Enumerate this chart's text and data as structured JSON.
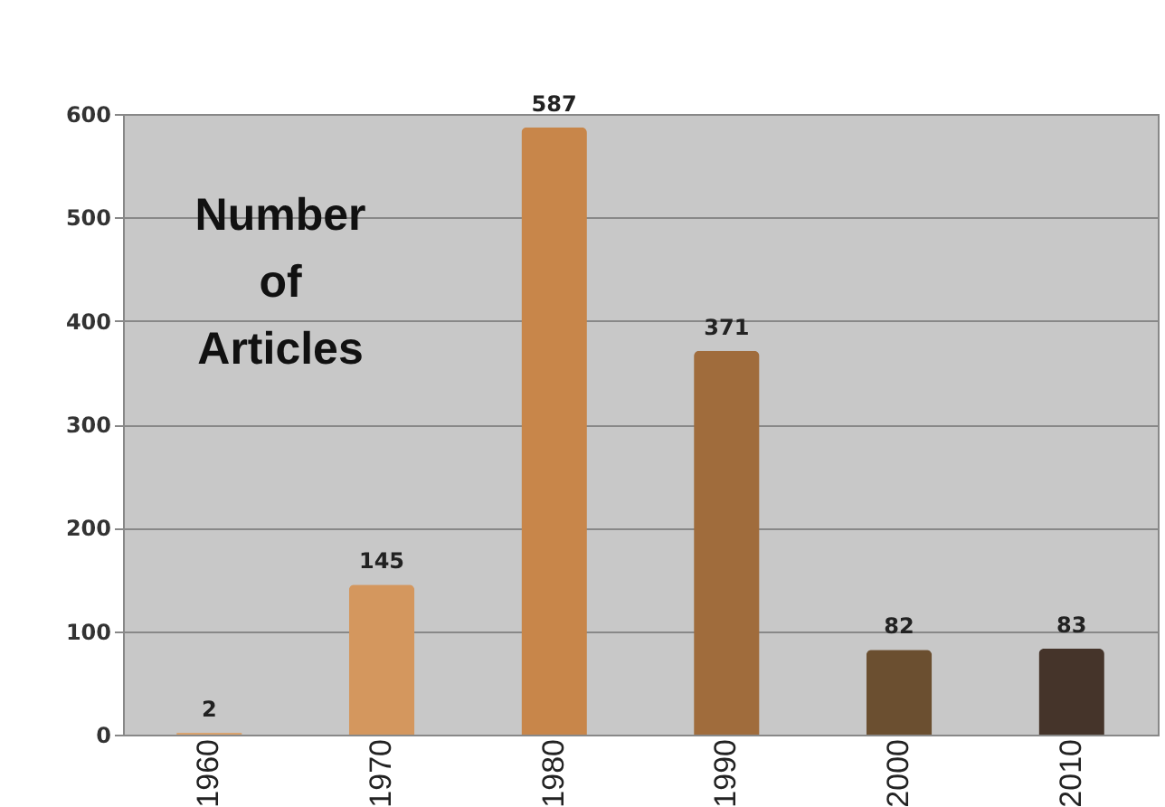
{
  "chart_data": {
    "type": "bar",
    "ylabel": "Number of Articles",
    "categories": [
      "1960",
      "1970",
      "1980",
      "1990",
      "2000",
      "2010"
    ],
    "values": [
      2,
      145,
      587,
      371,
      82,
      83
    ],
    "colors": [
      "#d9a36e",
      "#d4975e",
      "#c8864a",
      "#a06c3c",
      "#6b4f30",
      "#45342a"
    ],
    "ylim": [
      0,
      600
    ],
    "yticks": [
      0,
      100,
      200,
      300,
      400,
      500,
      600
    ],
    "grid": "y",
    "data_labels": true
  }
}
